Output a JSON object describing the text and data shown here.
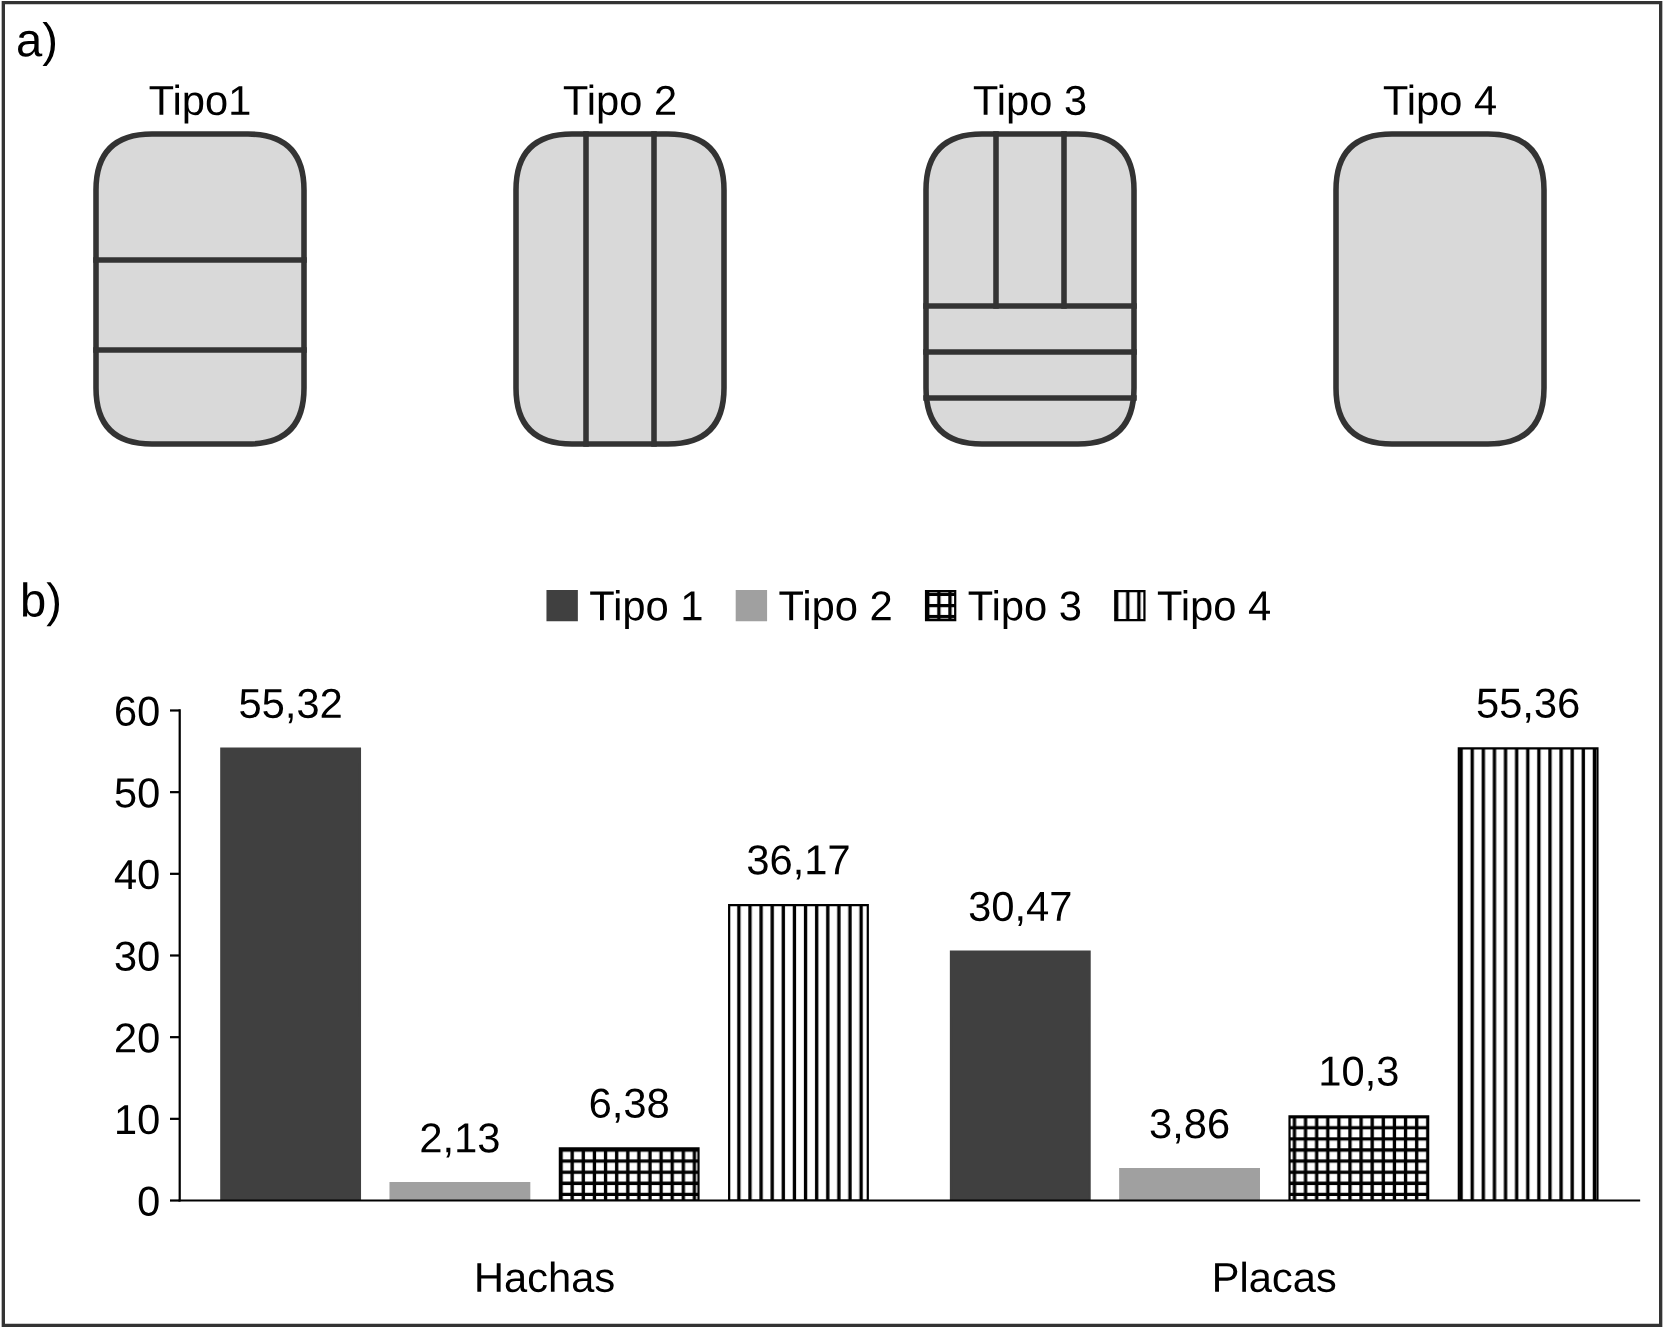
{
  "chart_data": [
    {
      "type": "other",
      "annotations": [
        "a)",
        "Tipo1",
        "Tipo 2",
        "Tipo 3",
        "Tipo 4"
      ]
    },
    {
      "type": "bar",
      "annotations": [
        "b)"
      ],
      "categories": [
        "Hachas",
        "Placas"
      ],
      "series": [
        {
          "name": "Tipo 1",
          "color": "#404040",
          "values": [
            55.32,
            30.47
          ],
          "value_labels": [
            "55,32",
            "30,47"
          ]
        },
        {
          "name": "Tipo 2",
          "color": "#a0a0a0",
          "values": [
            2.13,
            3.86
          ],
          "value_labels": [
            "2,13",
            "3,86"
          ]
        },
        {
          "name": "Tipo 3",
          "color": "#000000",
          "values": [
            6.38,
            10.3
          ],
          "value_labels": [
            "6,38",
            "10,3"
          ]
        },
        {
          "name": "Tipo 4",
          "color": "#000000",
          "values": [
            36.17,
            55.36
          ],
          "value_labels": [
            "36,17",
            "55,36"
          ]
        }
      ],
      "ylim": [
        0,
        60
      ],
      "yticks": [
        0,
        10,
        20,
        30,
        40,
        50,
        60
      ],
      "grid": false,
      "legend": "top"
    }
  ]
}
